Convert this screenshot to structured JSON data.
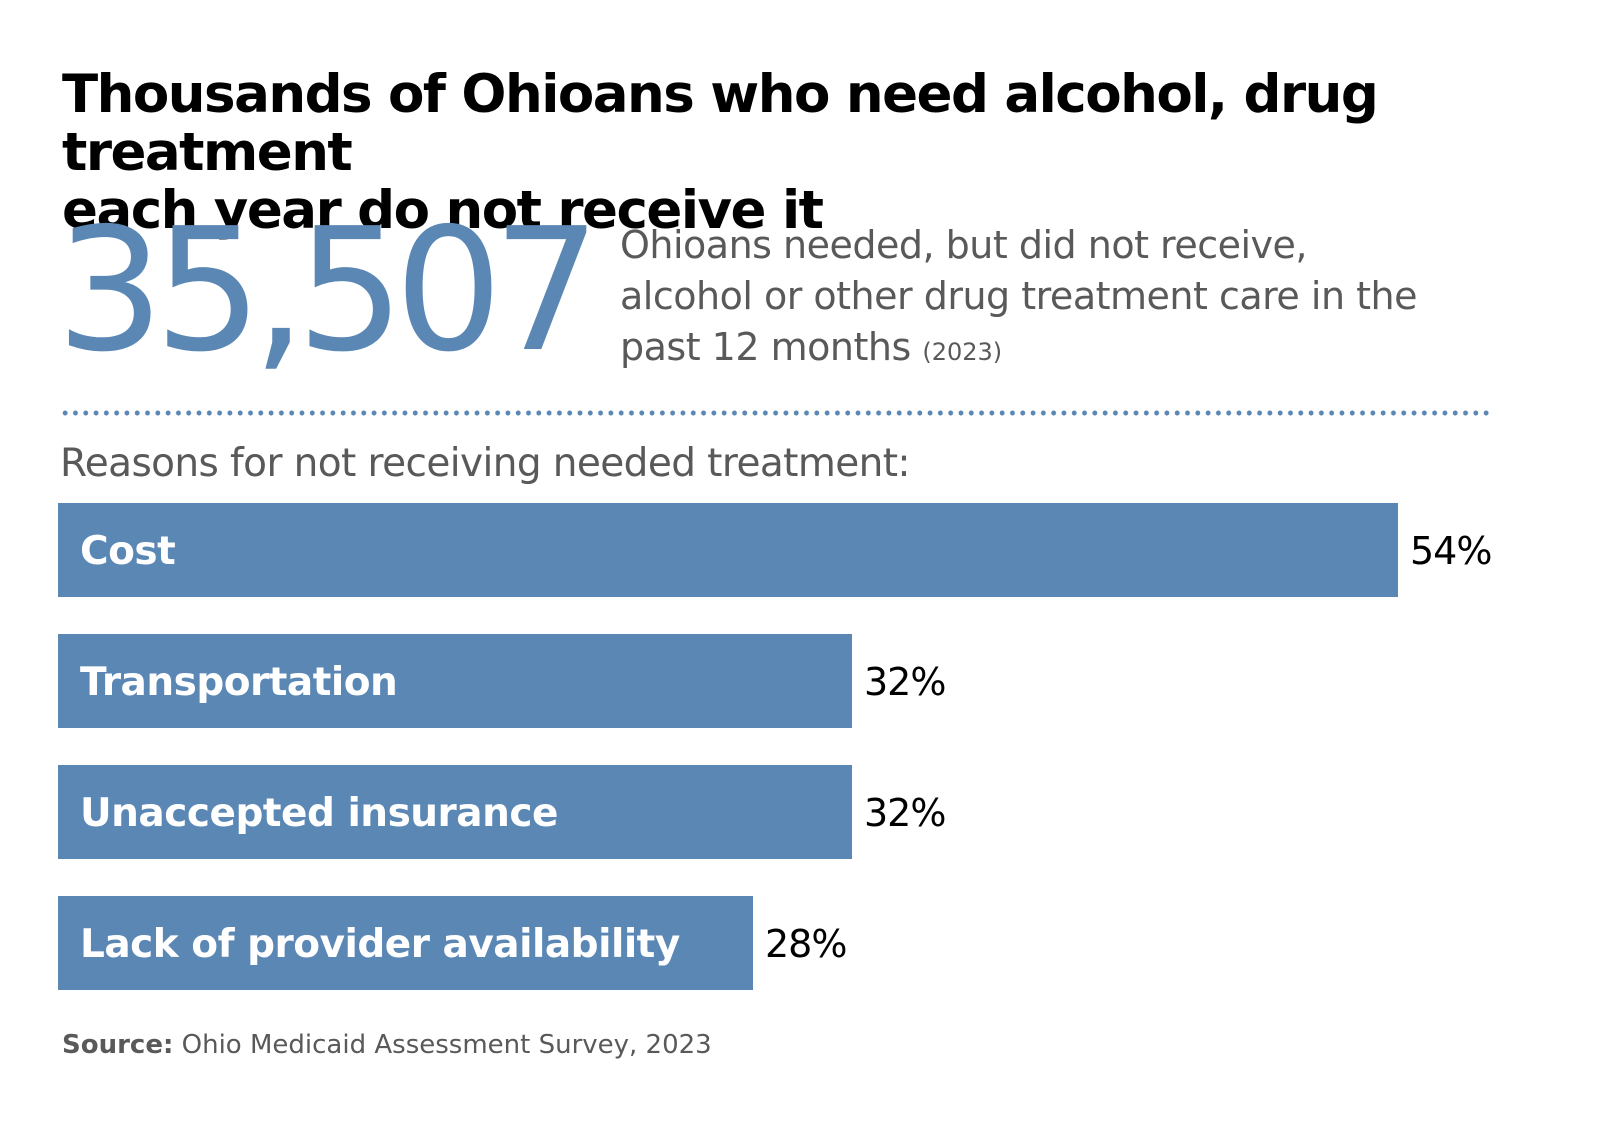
{
  "headline": {
    "title_line1": "Thousands of Ohioans who need alcohol, drug treatment",
    "title_line2": "each year do not receive it"
  },
  "stat": {
    "value": "35,507",
    "desc_line1": "Ohioans needed, but did not receive,",
    "desc_line2": "alcohol or other drug treatment care in the",
    "desc_line3": "past 12 months",
    "year_note": "(2023)"
  },
  "section_heading": "Reasons for not receiving needed treatment:",
  "chart_data": {
    "type": "bar",
    "orientation": "horizontal",
    "categories": [
      "Cost",
      "Transportation",
      "Unaccepted insurance",
      "Lack of provider availability"
    ],
    "values": [
      54,
      32,
      32,
      28
    ],
    "value_labels": [
      "54%",
      "32%",
      "32%",
      "28%"
    ],
    "unit": "%",
    "bar_color": "#5b87b5",
    "label_color": "#ffffff",
    "value_label_color": "#000000",
    "grid": false,
    "legend": "none",
    "xlim": [
      0,
      54
    ]
  },
  "source": {
    "label": "Source:",
    "text": "Ohio Medicaid Assessment Survey, 2023"
  },
  "colors": {
    "accent": "#5b87b5",
    "muted_text": "#595959"
  }
}
